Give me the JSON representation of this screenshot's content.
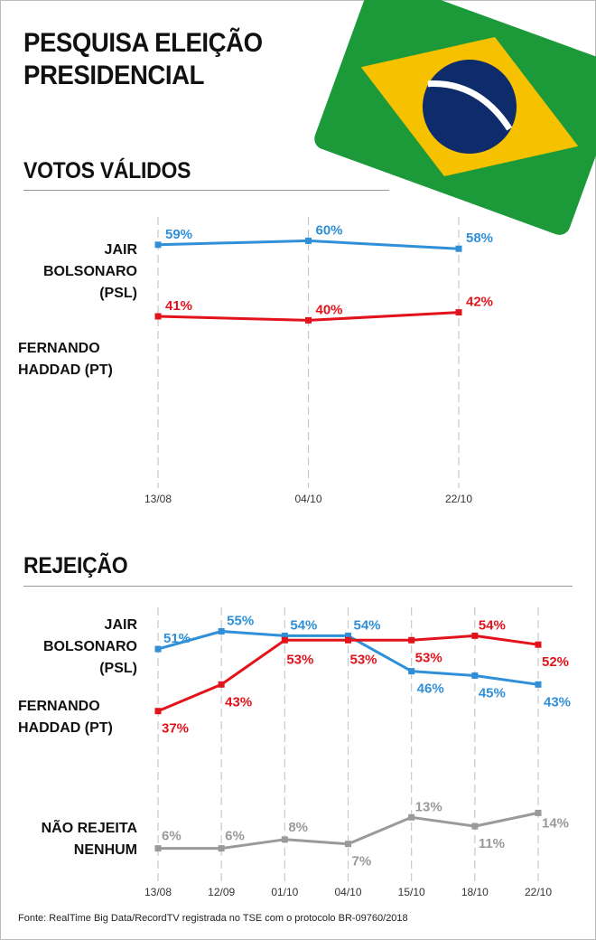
{
  "title": {
    "line1": "PESQUISA ELEIÇÃO",
    "line2": "PRESIDENCIAL"
  },
  "flag_colors": {
    "green": "#1c9a3a",
    "yellow": "#f6c200",
    "blue": "#0e2b6b",
    "white": "#ffffff"
  },
  "sections": {
    "votos": {
      "title": "VOTOS VÁLIDOS",
      "candidates": [
        {
          "line1": "JAIR",
          "line2": "BOLSONARO",
          "line3": "(PSL)"
        },
        {
          "line1": "FERNANDO",
          "line2": "HADDAD (PT)",
          "line3": ""
        }
      ]
    },
    "rejeicao": {
      "title": "REJEIÇÃO",
      "candidates": [
        {
          "line1": "JAIR",
          "line2": "BOLSONARO",
          "line3": "(PSL)"
        },
        {
          "line1": "FERNANDO",
          "line2": "HADDAD (PT)",
          "line3": ""
        },
        {
          "line1": "NÃO REJEITA",
          "line2": "NENHUM",
          "line3": ""
        }
      ]
    }
  },
  "chart_data": [
    {
      "type": "line",
      "title": "VOTOS VÁLIDOS",
      "x": [
        "13/08",
        "04/10",
        "22/10"
      ],
      "series": [
        {
          "name": "JAIR BOLSONARO (PSL)",
          "color": "#2f8fd8",
          "values": [
            59,
            60,
            58
          ],
          "labels": [
            "59%",
            "60%",
            "58%"
          ]
        },
        {
          "name": "FERNANDO HADDAD (PT)",
          "color": "#e3131b",
          "values": [
            41,
            40,
            42
          ],
          "labels": [
            "41%",
            "40%",
            "42%"
          ]
        }
      ],
      "grid": "dashed vertical"
    },
    {
      "type": "line",
      "title": "REJEIÇÃO",
      "x": [
        "13/08",
        "12/09",
        "01/10",
        "04/10",
        "15/10",
        "18/10",
        "22/10"
      ],
      "series": [
        {
          "name": "JAIR BOLSONARO (PSL)",
          "color": "#2f8fd8",
          "values": [
            51,
            55,
            54,
            54,
            46,
            45,
            43
          ],
          "labels": [
            "51%",
            "55%",
            "54%",
            "54%",
            "46%",
            "45%",
            "43%"
          ]
        },
        {
          "name": "FERNANDO HADDAD (PT)",
          "color": "#e3131b",
          "values": [
            37,
            43,
            53,
            53,
            53,
            54,
            52
          ],
          "labels": [
            "37%",
            "43%",
            "53%",
            "53%",
            "53%",
            "54%",
            "52%"
          ]
        },
        {
          "name": "NÃO REJEITA NENHUM",
          "color": "#9a9a9a",
          "values": [
            6,
            6,
            8,
            7,
            13,
            11,
            14
          ],
          "labels": [
            "6%",
            "6%",
            "8%",
            "7%",
            "13%",
            "11%",
            "14%"
          ]
        }
      ],
      "grid": "dashed vertical"
    }
  ],
  "source": "Fonte: RealTime Big Data/RecordTV registrada no TSE com o protocolo BR-09760/2018"
}
